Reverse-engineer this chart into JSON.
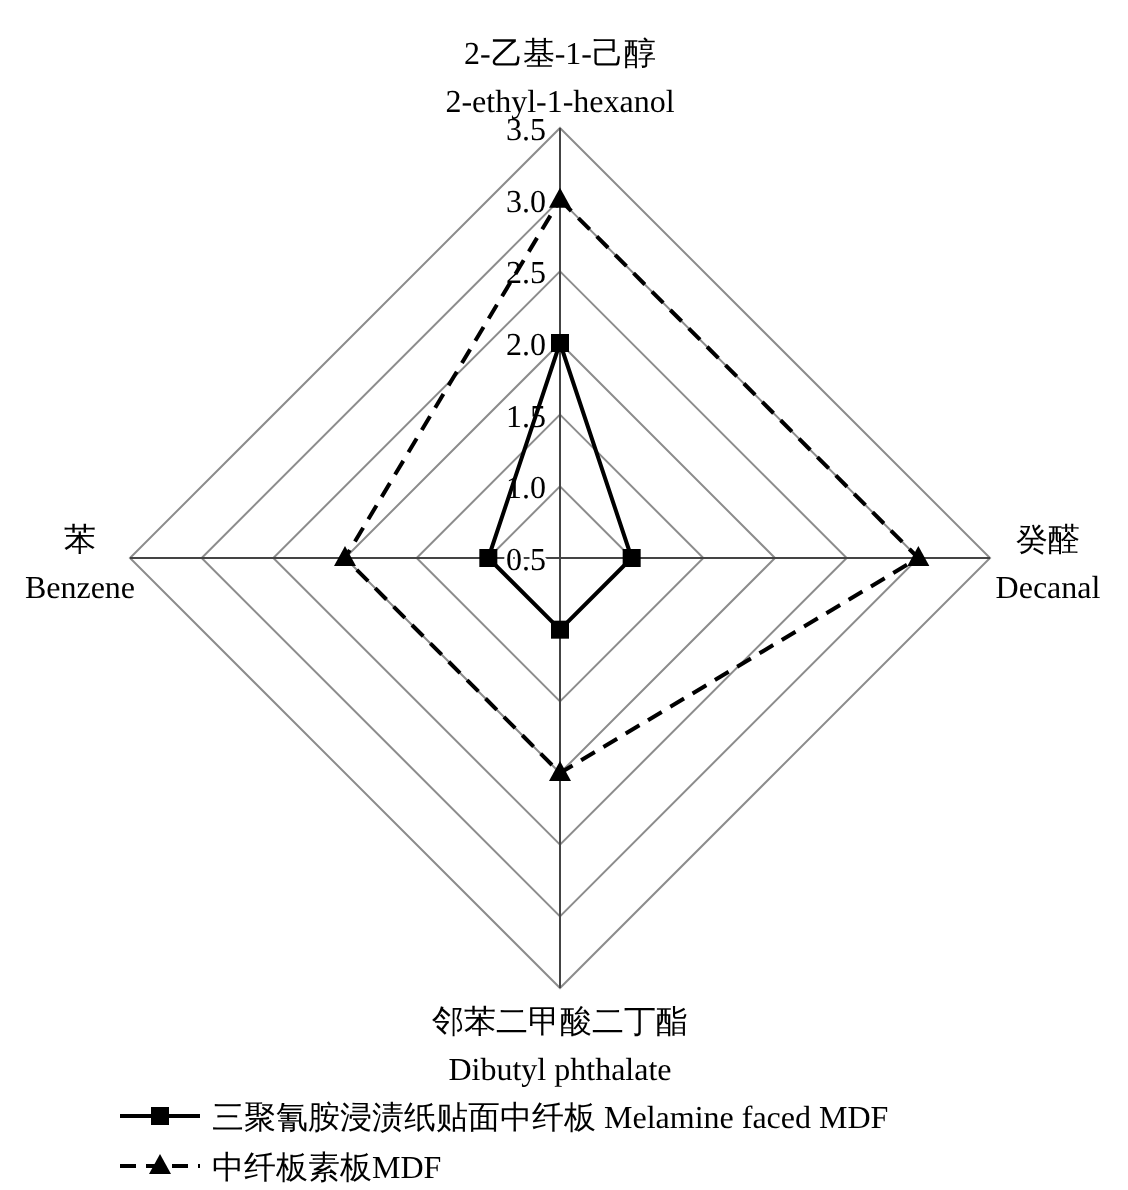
{
  "chart_data": {
    "type": "radar",
    "categories": [
      "2-乙基-1-己醇\n2-ethyl-1-hexanol",
      "癸醛\nDecanal",
      "邻苯二甲酸二丁酯\nDibutyl phthalate",
      "苯\nBenzene"
    ],
    "series": [
      {
        "name": "三聚氰胺浸渍纸贴面中纤板 Melamine faced MDF",
        "color": "#000000",
        "values": [
          2.0,
          1.0,
          1.0,
          1.0
        ],
        "marker": "square",
        "line_style": "solid"
      },
      {
        "name": "中纤板素板MDF",
        "color": "#000000",
        "values": [
          3.0,
          3.0,
          2.0,
          2.0
        ],
        "marker": "triangle",
        "line_style": "dashed"
      }
    ],
    "ylim": [
      0.5,
      3.5
    ],
    "yticks": [
      0.5,
      {
        "value": 1,
        "label": "1.0"
      },
      1.5,
      {
        "value": 2,
        "label": "2.0"
      },
      2.5,
      {
        "value": 3,
        "label": "3.0"
      },
      3.5
    ],
    "grid": true,
    "legend": "bottom"
  }
}
